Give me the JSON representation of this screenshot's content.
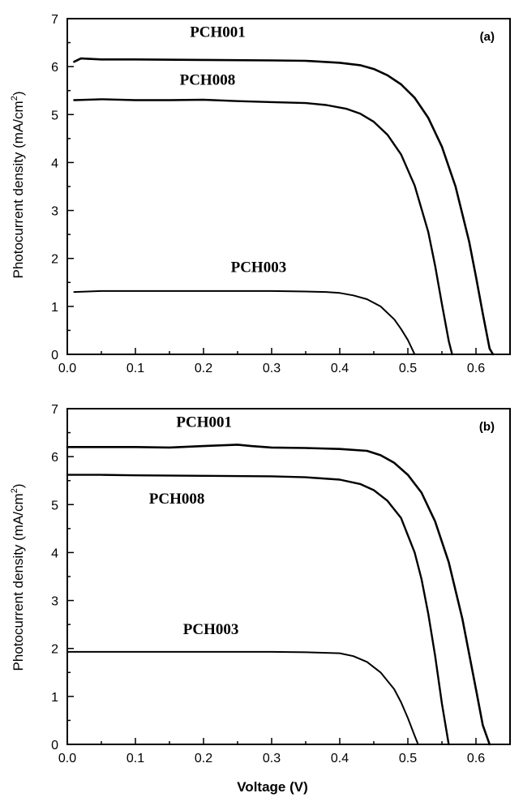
{
  "figure": {
    "x_axis_title": "Voltage (V)",
    "y_axis_title_main": "Photocurrent density (mA/cm",
    "y_axis_title_sup": "2",
    "y_axis_title_close": ")"
  },
  "chart_data": [
    {
      "type": "line",
      "panel_label_open": "(",
      "panel_label_letter": "a",
      "panel_label_close": ")",
      "xlabel": "",
      "ylabel": "Photocurrent density (mA/cm2)",
      "xlim": [
        0.0,
        0.65
      ],
      "ylim": [
        0,
        7
      ],
      "x_ticks": [
        0.0,
        0.1,
        0.2,
        0.3,
        0.4,
        0.5,
        0.6
      ],
      "x_tick_labels": [
        "0.0",
        "0.1",
        "0.2",
        "0.3",
        "0.4",
        "0.5",
        "0.6"
      ],
      "y_ticks": [
        0,
        1,
        2,
        3,
        4,
        5,
        6,
        7
      ],
      "y_tick_labels": [
        "0",
        "1",
        "2",
        "3",
        "4",
        "5",
        "6",
        "7"
      ],
      "grid": false,
      "legend": "none",
      "series": [
        {
          "name": "PCH001",
          "x": [
            0.01,
            0.02,
            0.05,
            0.1,
            0.2,
            0.3,
            0.35,
            0.4,
            0.43,
            0.45,
            0.47,
            0.49,
            0.51,
            0.53,
            0.55,
            0.57,
            0.59,
            0.6,
            0.61,
            0.62,
            0.625
          ],
          "y": [
            6.1,
            6.17,
            6.15,
            6.15,
            6.14,
            6.13,
            6.12,
            6.08,
            6.03,
            5.95,
            5.82,
            5.63,
            5.35,
            4.93,
            4.33,
            3.5,
            2.35,
            1.62,
            0.85,
            0.12,
            0.0
          ]
        },
        {
          "name": "PCH008",
          "x": [
            0.01,
            0.05,
            0.1,
            0.15,
            0.2,
            0.25,
            0.3,
            0.35,
            0.38,
            0.41,
            0.43,
            0.45,
            0.47,
            0.49,
            0.51,
            0.53,
            0.54,
            0.55,
            0.56,
            0.565
          ],
          "y": [
            5.3,
            5.32,
            5.3,
            5.3,
            5.31,
            5.28,
            5.26,
            5.24,
            5.2,
            5.12,
            5.02,
            4.85,
            4.58,
            4.17,
            3.52,
            2.55,
            1.85,
            1.05,
            0.28,
            0.0
          ]
        },
        {
          "name": "PCH003",
          "x": [
            0.01,
            0.05,
            0.1,
            0.2,
            0.3,
            0.35,
            0.38,
            0.4,
            0.42,
            0.44,
            0.46,
            0.48,
            0.49,
            0.5,
            0.51
          ],
          "y": [
            1.3,
            1.32,
            1.32,
            1.32,
            1.32,
            1.31,
            1.3,
            1.28,
            1.23,
            1.15,
            1.0,
            0.73,
            0.53,
            0.3,
            0.0
          ]
        }
      ],
      "annotations": [
        {
          "text": "PCH001",
          "x": 0.18,
          "y": 6.62
        },
        {
          "text": "PCH008",
          "x": 0.165,
          "y": 5.62
        },
        {
          "text": "PCH003",
          "x": 0.24,
          "y": 1.72
        }
      ]
    },
    {
      "type": "line",
      "panel_label_open": "(",
      "panel_label_letter": "b",
      "panel_label_close": ")",
      "xlabel": "Voltage (V)",
      "ylabel": "Photocurrent density (mA/cm2)",
      "xlim": [
        0.0,
        0.65
      ],
      "ylim": [
        0,
        7
      ],
      "x_ticks": [
        0.0,
        0.1,
        0.2,
        0.3,
        0.4,
        0.5,
        0.6
      ],
      "x_tick_labels": [
        "0.0",
        "0.1",
        "0.2",
        "0.3",
        "0.4",
        "0.5",
        "0.6"
      ],
      "y_ticks": [
        0,
        1,
        2,
        3,
        4,
        5,
        6,
        7
      ],
      "y_tick_labels": [
        "0",
        "1",
        "2",
        "3",
        "4",
        "5",
        "6",
        "7"
      ],
      "grid": false,
      "legend": "none",
      "series": [
        {
          "name": "PCH001",
          "x": [
            0.0,
            0.05,
            0.1,
            0.15,
            0.2,
            0.25,
            0.27,
            0.3,
            0.35,
            0.4,
            0.44,
            0.46,
            0.48,
            0.5,
            0.52,
            0.54,
            0.56,
            0.58,
            0.6,
            0.61,
            0.62
          ],
          "y": [
            6.2,
            6.2,
            6.2,
            6.19,
            6.22,
            6.25,
            6.22,
            6.19,
            6.18,
            6.16,
            6.12,
            6.03,
            5.87,
            5.62,
            5.25,
            4.65,
            3.8,
            2.62,
            1.15,
            0.4,
            0.0
          ]
        },
        {
          "name": "PCH008",
          "x": [
            0.0,
            0.05,
            0.1,
            0.2,
            0.3,
            0.35,
            0.4,
            0.43,
            0.45,
            0.47,
            0.49,
            0.51,
            0.52,
            0.53,
            0.54,
            0.55,
            0.56
          ],
          "y": [
            5.62,
            5.62,
            5.61,
            5.6,
            5.59,
            5.57,
            5.52,
            5.43,
            5.3,
            5.08,
            4.72,
            4.0,
            3.45,
            2.72,
            1.85,
            0.85,
            0.0
          ]
        },
        {
          "name": "PCH003",
          "x": [
            0.0,
            0.05,
            0.1,
            0.2,
            0.3,
            0.35,
            0.4,
            0.42,
            0.44,
            0.46,
            0.48,
            0.49,
            0.5,
            0.51,
            0.515
          ],
          "y": [
            1.93,
            1.93,
            1.93,
            1.93,
            1.93,
            1.92,
            1.9,
            1.84,
            1.72,
            1.5,
            1.15,
            0.88,
            0.55,
            0.18,
            0.0
          ]
        }
      ],
      "annotations": [
        {
          "text": "PCH001",
          "x": 0.16,
          "y": 6.62
        },
        {
          "text": "PCH008",
          "x": 0.12,
          "y": 5.02
        },
        {
          "text": "PCH003",
          "x": 0.17,
          "y": 2.3
        }
      ]
    }
  ]
}
